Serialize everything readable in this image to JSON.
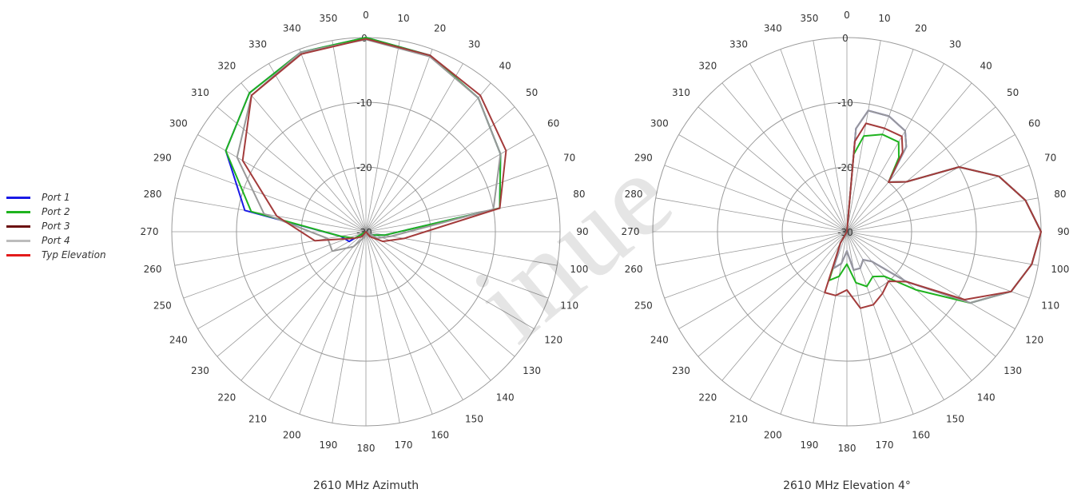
{
  "legend": {
    "entries": [
      {
        "label": "Port 1",
        "color": "#1a1ae6"
      },
      {
        "label": "Port 2",
        "color": "#1fb31f"
      },
      {
        "label": "Port 3",
        "color": "#6b0f0f"
      },
      {
        "label": "Port 4",
        "color": "#bcbcbc"
      },
      {
        "label": "Typ Elevation",
        "color": "#e31b1b"
      }
    ]
  },
  "watermark": "inue",
  "chart_data": [
    {
      "type": "polar-line",
      "caption": "2610 MHz Azimuth",
      "angle_ticks": [
        0,
        10,
        20,
        30,
        40,
        50,
        60,
        70,
        80,
        90,
        100,
        110,
        120,
        130,
        140,
        150,
        160,
        170,
        180,
        190,
        200,
        210,
        220,
        230,
        240,
        250,
        260,
        270,
        280,
        290,
        300,
        310,
        320,
        330,
        340,
        350
      ],
      "radial_ticks": [
        0,
        -10,
        -20,
        -30
      ],
      "radial_range_db": [
        -30,
        0
      ],
      "direction": "clockwise",
      "zero_at": "top",
      "series": [
        {
          "name": "Port 1",
          "color": "#1a1ae6",
          "angles": [
            0,
            20,
            40,
            60,
            80,
            100,
            120,
            140,
            160,
            180,
            200,
            220,
            240,
            260,
            280,
            300,
            320,
            340
          ],
          "values": [
            0,
            -1,
            -3,
            -6,
            -9,
            -27,
            -29,
            -30,
            -30,
            -30,
            -30,
            -30,
            -27,
            -26,
            -11,
            -5,
            -2,
            -0.5
          ]
        },
        {
          "name": "Port 2",
          "color": "#1fb31f",
          "angles": [
            0,
            20,
            40,
            60,
            80,
            100,
            120,
            140,
            160,
            180,
            200,
            220,
            240,
            260,
            280,
            300,
            320,
            340
          ],
          "values": [
            0,
            -1,
            -3,
            -6,
            -9,
            -27,
            -29,
            -30,
            -30,
            -30,
            -30,
            -30,
            -28,
            -26,
            -12,
            -5,
            -2,
            -0.5
          ]
        },
        {
          "name": "Port 4",
          "color": "#999999",
          "angles": [
            0,
            20,
            40,
            60,
            80,
            100,
            120,
            140,
            160,
            180,
            200,
            220,
            240,
            260,
            280,
            300,
            320,
            340
          ],
          "values": [
            -0.3,
            -1.2,
            -3,
            -6,
            -10,
            -26,
            -28,
            -30,
            -30,
            -30,
            -29,
            -27,
            -24,
            -24,
            -14,
            -7,
            -2.5,
            -0.5
          ]
        },
        {
          "name": "Typ Elevation",
          "color": "#a33b3b",
          "angles": [
            0,
            20,
            40,
            60,
            80,
            100,
            120,
            140,
            160,
            180,
            200,
            220,
            240,
            260,
            280,
            300,
            320,
            340
          ],
          "values": [
            -0.2,
            -1,
            -2.5,
            -5,
            -9,
            -24,
            -27,
            -29,
            -30,
            -30,
            -30,
            -29,
            -28,
            -22,
            -16,
            -8,
            -2.5,
            -0.8
          ]
        }
      ]
    },
    {
      "type": "polar-line",
      "caption": "2610 MHz Elevation 4°",
      "angle_ticks": [
        0,
        10,
        20,
        30,
        40,
        50,
        60,
        70,
        80,
        90,
        100,
        110,
        120,
        130,
        140,
        150,
        160,
        170,
        180,
        190,
        200,
        210,
        220,
        230,
        240,
        250,
        260,
        270,
        280,
        290,
        300,
        310,
        320,
        330,
        340,
        350
      ],
      "radial_ticks": [
        0,
        -10,
        -20,
        -30
      ],
      "radial_range_db": [
        -30,
        0
      ],
      "direction": "clockwise",
      "zero_at": "top",
      "series": [
        {
          "name": "Port 1",
          "color": "#1a1ae6",
          "angles": [
            0,
            5,
            10,
            20,
            30,
            35,
            40,
            50,
            60,
            70,
            80,
            90,
            100,
            110,
            120,
            130,
            140,
            150,
            160,
            170,
            180,
            190,
            200,
            210,
            220,
            270,
            340,
            350,
            360
          ],
          "values": [
            -30,
            -14,
            -11,
            -11,
            -12,
            -14,
            -20,
            -18,
            -10,
            -5,
            -2,
            0,
            -1,
            -3,
            -8,
            -18,
            -24,
            -25,
            -24,
            -24,
            -27,
            -25,
            -24,
            -28,
            -30,
            -30,
            -30,
            -30,
            -30
          ]
        },
        {
          "name": "Port 2",
          "color": "#1fb31f",
          "angles": [
            0,
            5,
            10,
            20,
            30,
            35,
            40,
            50,
            60,
            70,
            80,
            90,
            100,
            110,
            120,
            130,
            140,
            150,
            160,
            170,
            180,
            190,
            200,
            210,
            220,
            270,
            340,
            350,
            360
          ],
          "values": [
            -30,
            -18,
            -15,
            -14,
            -14,
            -16,
            -20,
            -18,
            -10,
            -5,
            -2,
            0,
            -1,
            -3,
            -8,
            -16,
            -21,
            -22,
            -21,
            -22,
            -25,
            -23,
            -22,
            -28,
            -30,
            -30,
            -30,
            -30,
            -30
          ]
        },
        {
          "name": "Port 4",
          "color": "#999999",
          "angles": [
            0,
            5,
            10,
            20,
            30,
            35,
            40,
            50,
            60,
            70,
            80,
            90,
            100,
            110,
            120,
            130,
            140,
            150,
            160,
            170,
            180,
            190,
            200,
            210,
            220,
            270,
            340,
            350,
            360
          ],
          "values": [
            -30,
            -14,
            -11,
            -11,
            -12,
            -14,
            -20,
            -18,
            -10,
            -5,
            -2,
            0,
            -1,
            -3,
            -8,
            -18,
            -24,
            -25,
            -24,
            -24,
            -27,
            -25,
            -24,
            -28,
            -30,
            -30,
            -30,
            -30,
            -30
          ]
        },
        {
          "name": "Typ Elevation",
          "color": "#a33b3b",
          "angles": [
            0,
            5,
            10,
            20,
            30,
            35,
            40,
            50,
            60,
            70,
            80,
            90,
            100,
            110,
            120,
            130,
            140,
            150,
            160,
            170,
            180,
            190,
            200,
            210,
            220,
            270,
            340,
            350,
            360
          ],
          "values": [
            -30,
            -16,
            -13,
            -13,
            -13,
            -15,
            -20,
            -18,
            -10,
            -5,
            -2,
            0,
            -1,
            -3,
            -9,
            -18,
            -20,
            -19,
            -18,
            -18,
            -21,
            -20,
            -20,
            -28,
            -30,
            -30,
            -30,
            -30,
            -30
          ]
        }
      ]
    }
  ]
}
